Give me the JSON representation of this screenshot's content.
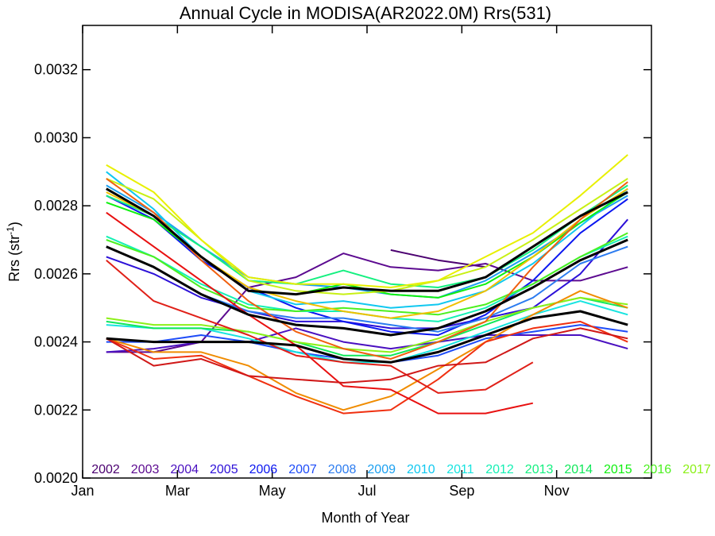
{
  "chart_data": {
    "type": "line",
    "title": "Annual Cycle in MODISA(AR2022.0M) Rrs(531)",
    "xlabel": "Month of Year",
    "ylabel_main": "Rrs (str",
    "ylabel_sup": "-1",
    "ylabel_close": ")",
    "xlim": [
      0,
      12
    ],
    "ylim": [
      0.002,
      0.00333
    ],
    "xticks": [
      {
        "v": 0,
        "label": "Jan"
      },
      {
        "v": 2,
        "label": "Mar"
      },
      {
        "v": 4,
        "label": "May"
      },
      {
        "v": 6,
        "label": "Jul"
      },
      {
        "v": 8,
        "label": "Sep"
      },
      {
        "v": 10,
        "label": "Nov"
      }
    ],
    "yticks": [
      {
        "v": 0.002,
        "label": "0.0020"
      },
      {
        "v": 0.0022,
        "label": "0.0022"
      },
      {
        "v": 0.0024,
        "label": "0.0024"
      },
      {
        "v": 0.0026,
        "label": "0.0026"
      },
      {
        "v": 0.0028,
        "label": "0.0028"
      },
      {
        "v": 0.003,
        "label": "0.0030"
      },
      {
        "v": 0.0032,
        "label": "0.0032"
      }
    ],
    "x": [
      0.5,
      1.5,
      2.5,
      3.5,
      4.5,
      5.5,
      6.5,
      7.5,
      8.5,
      9.5,
      10.5,
      11.5
    ],
    "legend": [
      {
        "label": "2002",
        "color": "#4b0070"
      },
      {
        "label": "2003",
        "color": "#5c0a90"
      },
      {
        "label": "2004",
        "color": "#4a10c0"
      },
      {
        "label": "2005",
        "color": "#2c10d8"
      },
      {
        "label": "2006",
        "color": "#0a16f0"
      },
      {
        "label": "2007",
        "color": "#1e4cf8"
      },
      {
        "label": "2008",
        "color": "#2c7cf0"
      },
      {
        "label": "2009",
        "color": "#1ca0f0"
      },
      {
        "label": "2010",
        "color": "#10c8f0"
      },
      {
        "label": "2011",
        "color": "#18e4e0"
      },
      {
        "label": "2012",
        "color": "#14f0b4"
      },
      {
        "label": "2013",
        "color": "#14f080"
      },
      {
        "label": "2014",
        "color": "#10e85a"
      },
      {
        "label": "2015",
        "color": "#10f010"
      },
      {
        "label": "2016",
        "color": "#4cf020"
      },
      {
        "label": "2017",
        "color": "#8cf018"
      }
    ],
    "series": [
      {
        "color": "#4b0070",
        "values": [
          null,
          null,
          null,
          null,
          null,
          null,
          0.00267,
          0.00264,
          0.00262,
          null,
          null,
          null
        ]
      },
      {
        "color": "#5c0a90",
        "values": [
          0.00237,
          0.00237,
          0.0024,
          0.00256,
          0.00259,
          0.00266,
          0.00262,
          0.00261,
          0.00263,
          0.00258,
          0.00258,
          0.00262
        ]
      },
      {
        "color": "#4a10c0",
        "values": [
          0.00237,
          0.00238,
          0.0024,
          0.0024,
          0.00244,
          0.0024,
          0.00238,
          0.0024,
          0.00242,
          0.00242,
          0.00242,
          0.00238
        ]
      },
      {
        "color": "#2c10d8",
        "values": [
          0.00265,
          0.0026,
          0.00253,
          0.00249,
          0.00246,
          0.00246,
          0.00244,
          0.00244,
          0.00247,
          0.0025,
          0.0026,
          0.00276
        ]
      },
      {
        "color": "#0a16f0",
        "values": [
          0.00283,
          0.00276,
          0.00264,
          0.00256,
          0.0025,
          0.00246,
          0.00243,
          0.00242,
          0.00248,
          0.00258,
          0.00272,
          0.00282
        ]
      },
      {
        "color": "#1e4cf8",
        "values": [
          0.0024,
          0.0024,
          0.00242,
          0.0024,
          0.00237,
          0.00235,
          0.00234,
          0.00236,
          0.00241,
          0.00243,
          0.00245,
          0.00243
        ]
      },
      {
        "color": "#2c7cf0",
        "values": [
          0.00268,
          0.00262,
          0.00254,
          0.00249,
          0.00247,
          0.00247,
          0.00245,
          0.00243,
          0.00247,
          0.00253,
          0.00263,
          0.00268
        ]
      },
      {
        "color": "#1ca0f0",
        "values": [
          0.00286,
          0.00278,
          0.00268,
          0.00259,
          0.00257,
          0.00256,
          0.00254,
          0.00253,
          0.00258,
          0.00266,
          0.00275,
          0.00283
        ]
      },
      {
        "color": "#10c8f0",
        "values": [
          0.0029,
          0.00279,
          0.00265,
          0.00255,
          0.00251,
          0.00252,
          0.0025,
          0.00251,
          0.00255,
          0.00263,
          0.00274,
          0.00285
        ]
      },
      {
        "color": "#18e4e0",
        "values": [
          0.00245,
          0.00244,
          0.00244,
          0.00241,
          0.00237,
          0.00234,
          0.00234,
          0.00238,
          0.00243,
          0.00248,
          0.00252,
          0.00248
        ]
      },
      {
        "color": "#14f0b4",
        "values": [
          0.00271,
          0.00265,
          0.00257,
          0.00251,
          0.00249,
          0.00249,
          0.00247,
          0.00246,
          0.0025,
          0.00257,
          0.00265,
          0.00271
        ]
      },
      {
        "color": "#14f080",
        "values": [
          0.00283,
          0.00277,
          0.00268,
          0.00258,
          0.00257,
          0.00261,
          0.00257,
          0.00256,
          0.00259,
          0.00267,
          0.00277,
          0.00286
        ]
      },
      {
        "color": "#10e85a",
        "values": [
          0.00246,
          0.00244,
          0.00244,
          0.00243,
          0.0024,
          0.00236,
          0.00236,
          0.0024,
          0.00245,
          0.0025,
          0.00253,
          0.0025
        ]
      },
      {
        "color": "#10f010",
        "values": [
          0.00281,
          0.00276,
          0.00265,
          0.00255,
          0.00254,
          0.00257,
          0.00254,
          0.00253,
          0.00257,
          0.00265,
          0.00275,
          0.00284
        ]
      },
      {
        "color": "#4cf020",
        "values": [
          0.0027,
          0.00265,
          0.00256,
          0.0025,
          0.00249,
          0.0025,
          0.00249,
          0.00248,
          0.00251,
          0.00257,
          0.00265,
          0.00272
        ]
      },
      {
        "color": "#8cf018",
        "values": [
          0.00247,
          0.00245,
          0.00245,
          0.00243,
          0.0024,
          0.00238,
          0.00237,
          0.00241,
          0.00246,
          0.0025,
          0.00253,
          0.00251
        ]
      },
      {
        "color": "#c8f014",
        "values": [
          0.00288,
          0.00282,
          0.0027,
          0.00258,
          0.00255,
          0.00254,
          0.00255,
          0.00258,
          0.00262,
          0.0027,
          0.00279,
          0.00288
        ]
      },
      {
        "color": "#e8f000",
        "values": [
          0.00292,
          0.00284,
          0.0027,
          0.00259,
          0.00257,
          0.00257,
          0.00256,
          0.00258,
          0.00265,
          0.00272,
          0.00283,
          0.00295
        ]
      },
      {
        "color": "#f0c000",
        "values": [
          0.00284,
          0.00277,
          0.00265,
          0.00256,
          0.00252,
          0.00249,
          0.00247,
          0.00249,
          0.00255,
          0.00265,
          0.00276,
          0.00285
        ]
      },
      {
        "color": "#f08c00",
        "values": [
          0.00241,
          0.00237,
          0.00237,
          0.00233,
          0.00225,
          0.0022,
          0.00224,
          0.00232,
          0.0024,
          0.00248,
          0.00255,
          0.0025
        ]
      },
      {
        "color": "#f06010",
        "values": [
          0.00288,
          0.00278,
          0.00264,
          0.00252,
          0.00243,
          0.00238,
          0.00235,
          0.0024,
          0.00246,
          0.00262,
          0.00276,
          0.00287
        ]
      },
      {
        "color": "#f03010",
        "values": [
          0.00241,
          0.00235,
          0.00236,
          0.0023,
          0.00224,
          0.00219,
          0.0022,
          0.00229,
          0.0024,
          0.00244,
          0.00246,
          0.0024
        ]
      },
      {
        "color": "#e81010",
        "values": [
          0.00278,
          0.00268,
          0.00258,
          0.00248,
          0.00239,
          0.00227,
          0.00226,
          0.00219,
          0.00219,
          0.00222,
          null,
          null
        ]
      },
      {
        "color": "#e02018",
        "values": [
          0.00264,
          0.00252,
          0.00247,
          0.00242,
          0.00236,
          0.00234,
          0.00233,
          0.00225,
          0.00226,
          0.00234,
          null,
          null
        ]
      },
      {
        "color": "#d01818",
        "values": [
          0.00241,
          0.00233,
          0.00235,
          0.0023,
          0.00229,
          0.00228,
          0.00229,
          0.00233,
          0.00234,
          0.00241,
          0.00244,
          0.00241
        ]
      },
      {
        "color": "#000000",
        "width": 3,
        "values": [
          0.00285,
          0.00277,
          0.00265,
          0.00255,
          0.00254,
          0.00256,
          0.00255,
          0.00255,
          0.00259,
          0.00268,
          0.00277,
          0.00284
        ]
      },
      {
        "color": "#000000",
        "width": 3,
        "values": [
          0.00268,
          0.00262,
          0.00254,
          0.00248,
          0.00245,
          0.00244,
          0.00242,
          0.00244,
          0.00249,
          0.00256,
          0.00264,
          0.0027
        ]
      },
      {
        "color": "#000000",
        "width": 3,
        "values": [
          0.00241,
          0.0024,
          0.0024,
          0.0024,
          0.00239,
          0.00235,
          0.00234,
          0.00237,
          0.00242,
          0.00247,
          0.00249,
          0.00245
        ]
      }
    ]
  }
}
